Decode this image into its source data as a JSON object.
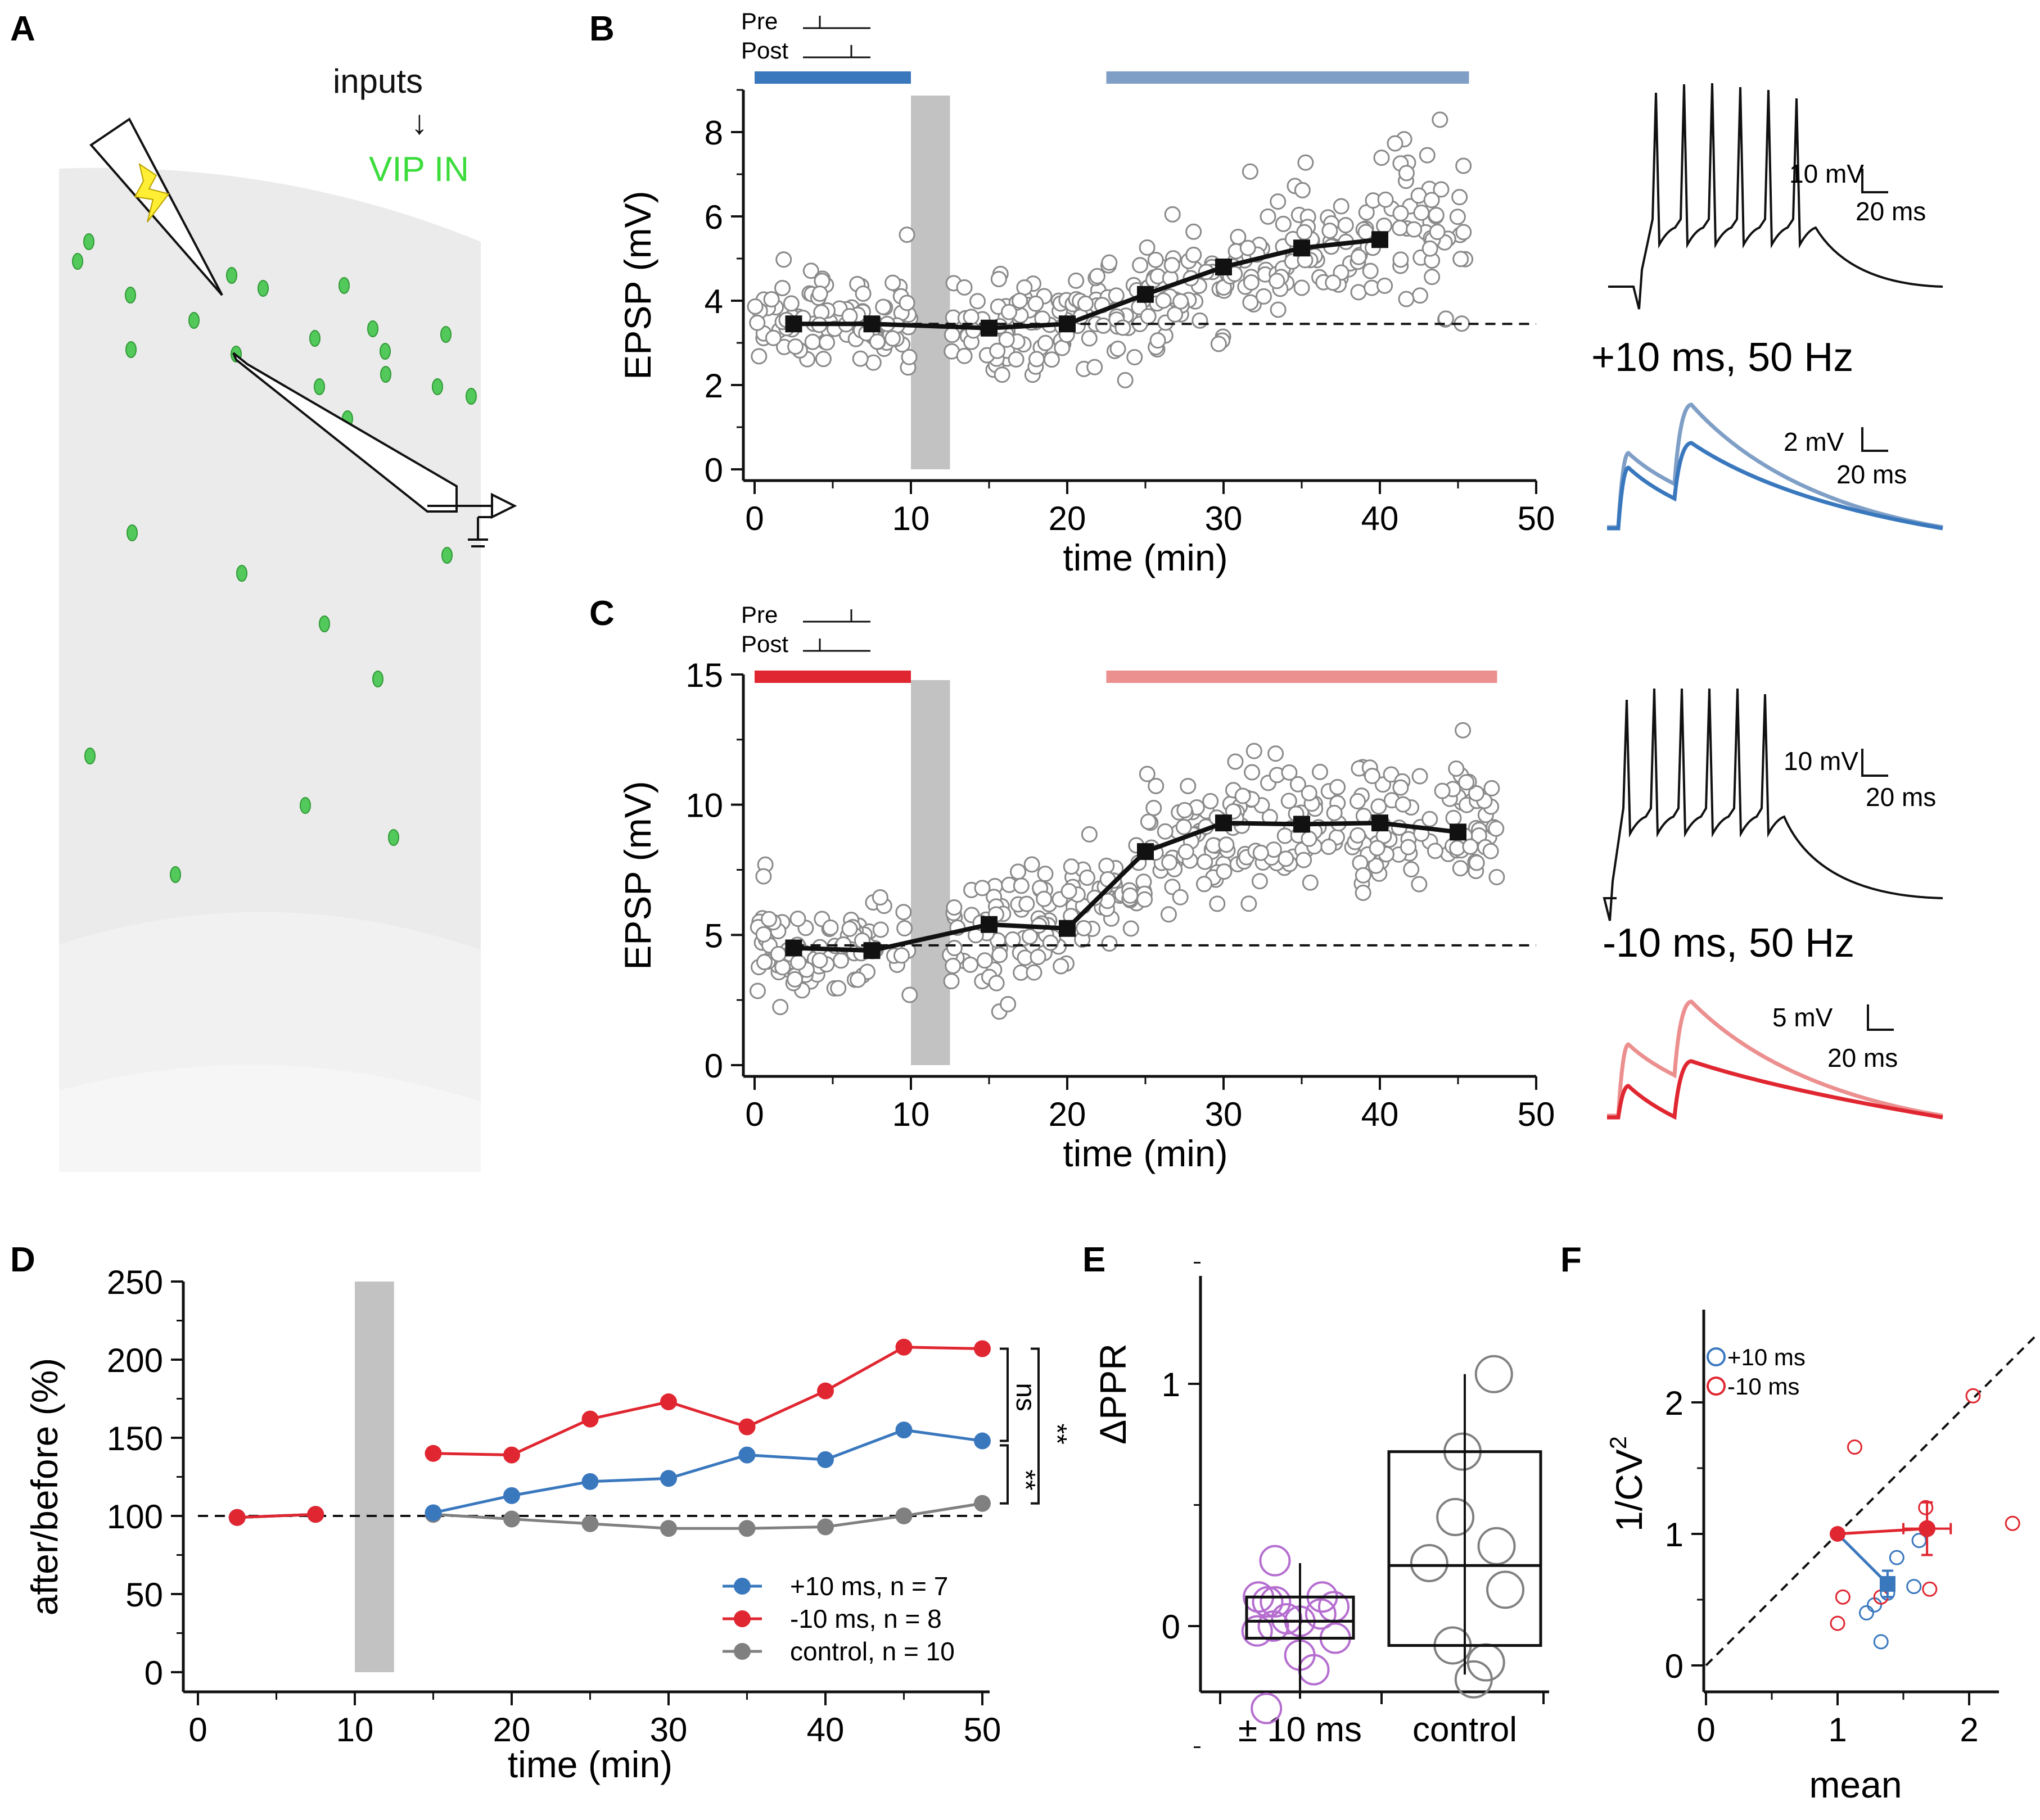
{
  "panels": {
    "A": {
      "letter": "A",
      "inputs_label": "inputs",
      "arrow_glyph": "↓",
      "vip_label": "VIP IN",
      "colors": {
        "tissue": "#ebebeb",
        "layer": "#f3f3f3",
        "cell": "#52c95a",
        "vip_text": "#3cdc3c",
        "bolt": "#ffee33"
      },
      "icons": [
        "stimulation-electrode-icon",
        "lightning-bolt-icon",
        "recording-electrode-icon",
        "amplifier-icon",
        "ground-icon"
      ]
    },
    "B": {
      "letter": "B",
      "pre_label": "Pre",
      "post_label": "Post",
      "condition_label": "+10 ms, 50 Hz",
      "spike_scale": {
        "amplitude": "10 mV",
        "duration": "20 ms"
      },
      "epsp_scale": {
        "amplitude": "2 mV",
        "duration": "20 ms"
      },
      "colors": {
        "before": "#3a78be",
        "after": "#7f9fc6"
      }
    },
    "C": {
      "letter": "C",
      "pre_label": "Pre",
      "post_label": "Post",
      "condition_label": "-10 ms, 50 Hz",
      "spike_scale": {
        "amplitude": "10 mV",
        "duration": "20 ms"
      },
      "epsp_scale": {
        "amplitude": "5 mV",
        "duration": "20 ms"
      },
      "colors": {
        "before": "#e02630",
        "after": "#ec8f8f"
      }
    },
    "D": {
      "letter": "D"
    },
    "E": {
      "letter": "E"
    },
    "F": {
      "letter": "F"
    }
  },
  "chart_data": [
    {
      "id": "B",
      "type": "scatter",
      "xlabel": "time (min)",
      "ylabel": "EPSP (mV)",
      "xlim": [
        0,
        50
      ],
      "ylim": [
        0,
        9
      ],
      "xticks": [
        "0",
        "10",
        "20",
        "30",
        "40",
        "50"
      ],
      "yticks": [
        "0",
        "2",
        "4",
        "6",
        "8"
      ],
      "baseline": 3.45,
      "pairing_window": [
        10,
        12.5
      ],
      "bars": [
        {
          "name": "before",
          "from": 0,
          "to": 10,
          "color": "#3a78be"
        },
        {
          "name": "after",
          "from": 22.5,
          "to": 45.7,
          "color": "#7f9fc6"
        }
      ],
      "mean_series": {
        "x": [
          2.5,
          7.5,
          15,
          20,
          25,
          30,
          35,
          40
        ],
        "y": [
          3.45,
          3.45,
          3.35,
          3.45,
          4.15,
          4.8,
          5.25,
          5.45
        ]
      },
      "trials_seed": 7,
      "trials": [
        {
          "from": 0,
          "to": 10,
          "mean": 3.5,
          "sd": 0.55,
          "n": 95
        },
        {
          "from": 12.5,
          "to": 20,
          "mean": 3.4,
          "sd": 0.55,
          "n": 70
        },
        {
          "from": 20,
          "to": 25,
          "mean": 3.7,
          "sd": 0.6,
          "n": 45
        },
        {
          "from": 25,
          "to": 30,
          "mean": 4.3,
          "sd": 0.7,
          "n": 45
        },
        {
          "from": 30,
          "to": 35,
          "mean": 4.9,
          "sd": 0.7,
          "n": 45
        },
        {
          "from": 35,
          "to": 40,
          "mean": 5.3,
          "sd": 0.7,
          "n": 45
        },
        {
          "from": 40,
          "to": 45.5,
          "mean": 5.7,
          "sd": 0.9,
          "n": 50
        }
      ]
    },
    {
      "id": "C",
      "type": "scatter",
      "xlabel": "time (min)",
      "ylabel": "EPSP (mV)",
      "xlim": [
        0,
        50
      ],
      "ylim": [
        0,
        15
      ],
      "xticks": [
        "0",
        "10",
        "20",
        "30",
        "40",
        "50"
      ],
      "yticks": [
        "0",
        "5",
        "10",
        "15"
      ],
      "baseline": 4.6,
      "pairing_window": [
        10,
        12.5
      ],
      "bars": [
        {
          "name": "before",
          "from": 0,
          "to": 10,
          "color": "#e02630"
        },
        {
          "name": "after",
          "from": 22.5,
          "to": 47.5,
          "color": "#ec8f8f"
        }
      ],
      "mean_series": {
        "x": [
          2.5,
          7.5,
          15,
          20,
          25,
          30,
          35,
          40,
          45
        ],
        "y": [
          4.5,
          4.4,
          5.4,
          5.25,
          8.2,
          9.3,
          9.25,
          9.3,
          8.95
        ]
      },
      "trials_seed": 11,
      "trials": [
        {
          "from": 0,
          "to": 10,
          "mean": 4.5,
          "sd": 0.9,
          "n": 95
        },
        {
          "from": 12.5,
          "to": 20,
          "mean": 5.1,
          "sd": 1.2,
          "n": 70
        },
        {
          "from": 20,
          "to": 25,
          "mean": 6.5,
          "sd": 1.3,
          "n": 45
        },
        {
          "from": 25,
          "to": 30,
          "mean": 8.6,
          "sd": 1.3,
          "n": 50
        },
        {
          "from": 30,
          "to": 47.5,
          "mean": 9.2,
          "sd": 1.3,
          "n": 160
        }
      ]
    },
    {
      "id": "D",
      "type": "line",
      "xlabel": "time (min)",
      "ylabel": "after/before (%)",
      "xlim": [
        0,
        50
      ],
      "ylim": [
        0,
        250
      ],
      "xticks": [
        "0",
        "10",
        "20",
        "30",
        "40",
        "50"
      ],
      "yticks": [
        "0",
        "50",
        "100",
        "150",
        "200",
        "250"
      ],
      "baseline": 100,
      "pairing_window": [
        10,
        12.5
      ],
      "series": [
        {
          "name": "+10 ms, n = 7",
          "color": "#3a78be",
          "x": [
            2.5,
            7.5,
            15,
            20,
            25,
            30,
            35,
            40,
            45,
            50
          ],
          "y": [
            99,
            101,
            102,
            113,
            122,
            124,
            139,
            136,
            155,
            148
          ]
        },
        {
          "name": "-10 ms, n = 8",
          "color": "#e02630",
          "x": [
            2.5,
            7.5,
            15,
            20,
            25,
            30,
            35,
            40,
            45,
            50
          ],
          "y": [
            99,
            101,
            140,
            139,
            162,
            173,
            157,
            180,
            208,
            207
          ]
        },
        {
          "name": "control, n = 10",
          "color": "#808080",
          "x": [
            2.5,
            7.5,
            15,
            20,
            25,
            30,
            35,
            40,
            45,
            50
          ],
          "y": [
            99,
            101,
            101,
            98,
            95,
            92,
            92,
            93,
            100,
            108
          ]
        }
      ],
      "significance": [
        {
          "label": "ns",
          "between": [
            "-10 ms",
            "+10 ms"
          ]
        },
        {
          "label": "**",
          "between": [
            "+10 ms",
            "control"
          ]
        },
        {
          "label": "**",
          "between": [
            "-10 ms",
            "control"
          ]
        }
      ],
      "legend_position": "bottom-right"
    },
    {
      "id": "E",
      "type": "box",
      "ylabel": "ΔPPR",
      "ylim": [
        -0.5,
        1.5
      ],
      "yticks": [
        "0",
        "1"
      ],
      "categories": [
        "± 10 ms",
        "control"
      ],
      "colors": [
        "#b56ed0",
        "#808080"
      ],
      "boxes": [
        {
          "q1": -0.05,
          "median": 0.02,
          "q3": 0.12,
          "whisker_low": -0.3,
          "whisker_high": 0.26
        },
        {
          "q1": -0.08,
          "median": 0.25,
          "q3": 0.72,
          "whisker_low": -0.2,
          "whisker_high": 1.04
        }
      ],
      "points": [
        {
          "group": 0,
          "values": [
            0.27,
            0.12,
            0.1,
            0.08,
            0.05,
            0.03,
            0.02,
            0.0,
            -0.02,
            -0.05,
            0.12,
            0.1,
            -0.12,
            -0.18,
            -0.34
          ]
        },
        {
          "group": 1,
          "values": [
            1.04,
            0.72,
            0.45,
            0.33,
            0.26,
            0.15,
            -0.08,
            -0.15,
            -0.22
          ]
        }
      ]
    },
    {
      "id": "F",
      "type": "scatter",
      "xlabel": "mean",
      "ylabel": "1/CV²",
      "ylabel_parts": {
        "base": "1/CV",
        "sup": "2"
      },
      "xlim": [
        -0.1,
        2.5
      ],
      "ylim": [
        -0.1,
        2.5
      ],
      "xticks": [
        "0",
        "1",
        "2"
      ],
      "yticks": [
        "0",
        "1",
        "2"
      ],
      "identity_line": true,
      "series": [
        {
          "name": "+10 ms",
          "color": "#3a78be",
          "x": [
            1.22,
            1.28,
            1.33,
            1.38,
            1.45,
            1.58,
            1.62
          ],
          "y": [
            0.4,
            0.46,
            0.18,
            0.55,
            0.82,
            0.6,
            0.95
          ],
          "mean": {
            "x": 1.38,
            "y": 0.62,
            "xerr": 0.05,
            "yerr": 0.1
          }
        },
        {
          "name": "-10 ms",
          "color": "#e02630",
          "x": [
            1.0,
            1.04,
            1.13,
            1.33,
            1.67,
            1.7,
            2.03,
            2.33
          ],
          "y": [
            0.32,
            0.52,
            1.66,
            0.52,
            1.2,
            0.58,
            2.05,
            1.08
          ],
          "mean": {
            "x": 1.68,
            "y": 1.04,
            "xerr": 0.18,
            "yerr": 0.2
          }
        }
      ],
      "origin_point": {
        "x": 1.0,
        "y": 1.0
      }
    }
  ]
}
